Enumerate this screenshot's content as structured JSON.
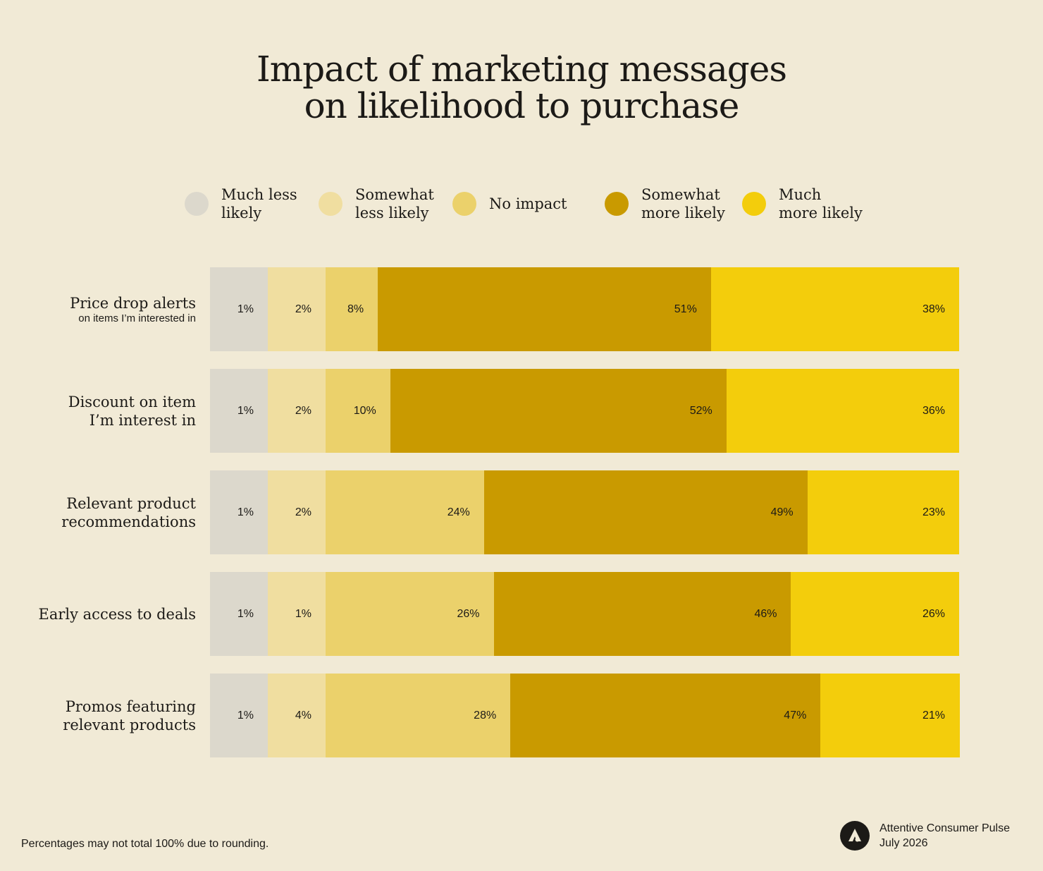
{
  "chart_data": {
    "type": "bar",
    "orientation": "horizontal",
    "stacked": true,
    "title_lines": [
      "Impact of marketing messages",
      "on likelihood to purchase"
    ],
    "legend_placement": "top",
    "grid": false,
    "xlim": [
      0,
      100
    ],
    "series": [
      {
        "name_lines": [
          "Much less",
          "likely"
        ],
        "color": "#dcd8cc",
        "values": [
          1,
          1,
          1,
          1,
          1
        ]
      },
      {
        "name_lines": [
          "Somewhat",
          "less likely"
        ],
        "color": "#f0dea0",
        "values": [
          2,
          2,
          2,
          1,
          4
        ]
      },
      {
        "name_lines": [
          "No impact"
        ],
        "color": "#ebd16b",
        "values": [
          8,
          10,
          24,
          26,
          28
        ]
      },
      {
        "name_lines": [
          "Somewhat",
          "more likely"
        ],
        "color": "#c99a00",
        "values": [
          51,
          52,
          49,
          46,
          47
        ]
      },
      {
        "name_lines": [
          "Much",
          "more likely"
        ],
        "color": "#f3cd0c",
        "values": [
          38,
          36,
          23,
          26,
          21
        ]
      }
    ],
    "categories": [
      {
        "lines": [
          "Price drop alerts"
        ],
        "sub": "on items I’m interested in"
      },
      {
        "lines": [
          "Discount on item",
          "I’m interest in"
        ],
        "sub": ""
      },
      {
        "lines": [
          "Relevant product",
          "recommendations"
        ],
        "sub": ""
      },
      {
        "lines": [
          "Early access to deals"
        ],
        "sub": ""
      },
      {
        "lines": [
          "Promos featuring",
          "relevant products"
        ],
        "sub": ""
      }
    ],
    "value_suffix": "%"
  },
  "footer": {
    "note": "Percentages may not total 100% due to rounding.",
    "source_line1": "Attentive Consumer Pulse",
    "source_line2": "July 2026",
    "logo_icon": "attentive-logo-icon"
  }
}
